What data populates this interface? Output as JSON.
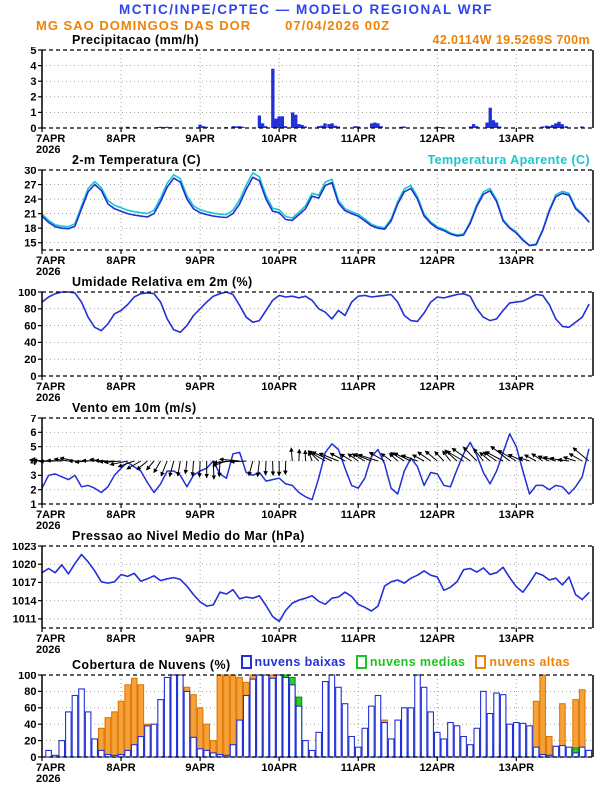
{
  "header": {
    "title": "MCTIC/INPE/CPTEC — MODELO REGIONAL WRF",
    "title_color": "#2e44ee",
    "station": "MG SAO DOMINGOS DAS DOR",
    "run": "07/04/2026 00Z",
    "coords": "42.0114W 19.5269S 700m",
    "accent_color": "#ef8200"
  },
  "axis": {
    "x_ticks": [
      "7APR",
      "8APR",
      "9APR",
      "10APR",
      "11APR",
      "12APR",
      "13APR"
    ],
    "year": "2026",
    "days_shown": 6.97,
    "grid": "dotted"
  },
  "panels": {
    "precip": {
      "title": "Precipitacao (mm/h)"
    },
    "temp": {
      "title": "2-m Temperatura (C)",
      "legend": "Temperatura Aparente (C)"
    },
    "humidity": {
      "title": "Umidade Relativa em 2m (%)"
    },
    "wind": {
      "title": "Vento em 10m (m/s)"
    },
    "pressure": {
      "title": "Pressao ao Nivel Medio do Mar (hPa)"
    },
    "clouds": {
      "title": "Cobertura de Nuvens (%)",
      "legend": [
        {
          "label": "nuvens baixas",
          "color": "#2130d8"
        },
        {
          "label": "nuvens medias",
          "color": "#1fc41f"
        },
        {
          "label": "nuvens altas",
          "color": "#ef8200"
        }
      ]
    }
  },
  "chart_data": [
    {
      "id": "precip",
      "type": "bar",
      "title": "Precipitacao (mm/h)",
      "ylim": [
        0,
        5
      ],
      "yticks": [
        0,
        1,
        2,
        3,
        4,
        5
      ],
      "x_origin": "07APR2026 00Z",
      "x_unit": "days",
      "bar_width_days": 0.042,
      "color": "#2130d8",
      "bars": [
        [
          1.08,
          0.08
        ],
        [
          1.17,
          0.06
        ],
        [
          1.46,
          0.06
        ],
        [
          1.5,
          0.08
        ],
        [
          1.54,
          0.06
        ],
        [
          1.58,
          0.08
        ],
        [
          1.63,
          0.06
        ],
        [
          2.0,
          0.22
        ],
        [
          2.04,
          0.12
        ],
        [
          2.08,
          0.08
        ],
        [
          2.33,
          0.06
        ],
        [
          2.42,
          0.12
        ],
        [
          2.46,
          0.1
        ],
        [
          2.5,
          0.12
        ],
        [
          2.54,
          0.08
        ],
        [
          2.75,
          0.8
        ],
        [
          2.79,
          0.3
        ],
        [
          2.83,
          0.12
        ],
        [
          2.92,
          3.8
        ],
        [
          2.96,
          0.6
        ],
        [
          3.0,
          0.75
        ],
        [
          3.04,
          0.75
        ],
        [
          3.08,
          0.12
        ],
        [
          3.17,
          1.0
        ],
        [
          3.21,
          0.85
        ],
        [
          3.25,
          0.25
        ],
        [
          3.29,
          0.2
        ],
        [
          3.33,
          0.1
        ],
        [
          3.5,
          0.12
        ],
        [
          3.54,
          0.15
        ],
        [
          3.58,
          0.3
        ],
        [
          3.63,
          0.25
        ],
        [
          3.67,
          0.3
        ],
        [
          3.71,
          0.15
        ],
        [
          3.75,
          0.1
        ],
        [
          3.96,
          0.12
        ],
        [
          4.0,
          0.1
        ],
        [
          4.17,
          0.3
        ],
        [
          4.21,
          0.35
        ],
        [
          4.25,
          0.3
        ],
        [
          4.29,
          0.12
        ],
        [
          4.54,
          0.08
        ],
        [
          4.58,
          0.1
        ],
        [
          5.0,
          0.08
        ],
        [
          5.04,
          0.06
        ],
        [
          5.42,
          0.1
        ],
        [
          5.46,
          0.25
        ],
        [
          5.5,
          0.12
        ],
        [
          5.63,
          0.35
        ],
        [
          5.67,
          1.3
        ],
        [
          5.71,
          0.5
        ],
        [
          5.75,
          0.35
        ],
        [
          5.79,
          0.1
        ],
        [
          6.33,
          0.1
        ],
        [
          6.38,
          0.15
        ],
        [
          6.42,
          0.12
        ],
        [
          6.46,
          0.2
        ],
        [
          6.5,
          0.3
        ],
        [
          6.54,
          0.4
        ],
        [
          6.58,
          0.25
        ],
        [
          6.63,
          0.12
        ],
        [
          6.83,
          0.1
        ]
      ]
    },
    {
      "id": "temp",
      "type": "line",
      "title": "2-m Temperatura (C)",
      "ylim": [
        13.5,
        30
      ],
      "yticks": [
        15,
        18,
        21,
        24,
        27,
        30
      ],
      "dx_days": 0.083333,
      "series": [
        {
          "name": "Temperatura Aparente (C)",
          "color": "#17c8cf",
          "values": [
            20.9,
            19.6,
            18.7,
            18.4,
            18.3,
            18.9,
            22.6,
            26.2,
            27.6,
            26.4,
            23.7,
            22.7,
            22.2,
            21.7,
            21.4,
            21.2,
            21,
            21.7,
            24.2,
            27.3,
            29,
            28.2,
            24.7,
            22.6,
            21.8,
            21.4,
            21.1,
            20.9,
            20.8,
            21.7,
            23.8,
            26.9,
            29.4,
            28.6,
            24.7,
            22.1,
            21.8,
            20.4,
            20.1,
            21.3,
            22.6,
            25.2,
            24.8,
            27.5,
            28.1,
            23.7,
            22,
            21.4,
            20.9,
            19.9,
            18.8,
            18.3,
            18.1,
            19.9,
            23.5,
            26.1,
            26.8,
            24.5,
            20.9,
            19.3,
            18.3,
            17.8,
            17,
            16.6,
            16.8,
            19.3,
            22.9,
            25.5,
            26.2,
            23.9,
            19.8,
            18.2,
            17.2,
            15.7,
            14.5,
            14.7,
            17.7,
            21.8,
            24.9,
            25.6,
            25.2,
            22.3,
            21,
            19.4
          ]
        },
        {
          "name": "2-m Temperatura (C)",
          "color": "#2130d8",
          "values": [
            20.5,
            19.2,
            18.3,
            18,
            17.9,
            18.4,
            22,
            25.5,
            27,
            25.8,
            23,
            22,
            21.5,
            21,
            20.7,
            20.5,
            20.3,
            21,
            23.5,
            26.5,
            28.3,
            27.5,
            24,
            22,
            21.2,
            20.8,
            20.5,
            20.3,
            20.2,
            21,
            23,
            26,
            28.5,
            27.8,
            24,
            21.5,
            21.2,
            19.8,
            19.6,
            20.8,
            22,
            24.6,
            24.2,
            26.8,
            27.4,
            23.2,
            21.6,
            21,
            20.5,
            19.5,
            18.5,
            18,
            17.8,
            19.5,
            23,
            25.5,
            26.2,
            24,
            20.5,
            19,
            18,
            17.5,
            16.8,
            16.4,
            16.6,
            19,
            22.5,
            25,
            25.7,
            23.5,
            19.5,
            18,
            17,
            15.5,
            14.4,
            14.6,
            17.5,
            21.5,
            24.5,
            25.2,
            24.8,
            22,
            20.8,
            19.3
          ]
        }
      ]
    },
    {
      "id": "humidity",
      "type": "line",
      "title": "Umidade Relativa em 2m (%)",
      "ylim": [
        0,
        100
      ],
      "yticks": [
        0,
        20,
        40,
        60,
        80,
        100
      ],
      "dx_days": 0.083333,
      "series": [
        {
          "name": "Umidade Relativa em 2m",
          "color": "#2130d8",
          "values": [
            88,
            94,
            98,
            100,
            100,
            99,
            88,
            70,
            58,
            54,
            62,
            74,
            78,
            85,
            94,
            98,
            99,
            98,
            88,
            68,
            55,
            52,
            60,
            72,
            80,
            88,
            95,
            98,
            100,
            97,
            84,
            70,
            64,
            66,
            78,
            90,
            96,
            94,
            95,
            93,
            95,
            90,
            80,
            76,
            68,
            78,
            72,
            88,
            95,
            96,
            94,
            95,
            96,
            97,
            88,
            72,
            66,
            65,
            75,
            88,
            94,
            93,
            95,
            97,
            98,
            95,
            80,
            70,
            66,
            68,
            78,
            87,
            88,
            89,
            93,
            97,
            96,
            85,
            68,
            59,
            58,
            64,
            70,
            85
          ]
        }
      ]
    },
    {
      "id": "wind",
      "type": "line_vectors",
      "title": "Vento em 10m (m/s)",
      "ylim": [
        1,
        7
      ],
      "yticks": [
        1,
        2,
        3,
        4,
        5,
        6,
        7
      ],
      "dx_days": 0.083333,
      "speed": {
        "name": "Velocidade do vento",
        "color": "#2130d8",
        "values": [
          2.1,
          3,
          3.1,
          2.9,
          2.7,
          3,
          2.2,
          2.3,
          2.1,
          1.8,
          2.2,
          3,
          3.5,
          3.9,
          3.6,
          3.3,
          2.5,
          1.8,
          2.4,
          3.3,
          3.3,
          3,
          2.2,
          3,
          3.3,
          3.5,
          4,
          3.1,
          2.8,
          4.5,
          4.6,
          3.2,
          3,
          3.2,
          2.6,
          2.7,
          2.8,
          2.4,
          2.3,
          1.8,
          1.5,
          1.3,
          2.8,
          4.6,
          5.2,
          4.8,
          3.5,
          2.3,
          2.1,
          2.8,
          4.3,
          4.8,
          3.8,
          2.1,
          1.7,
          3.3,
          4.2,
          3.6,
          2.3,
          3.2,
          3.1,
          2.3,
          2.2,
          3.4,
          4.5,
          5.3,
          4.4,
          3.2,
          2.4,
          3.3,
          4.6,
          5.9,
          5,
          3.3,
          1.7,
          2.3,
          2.3,
          2,
          2.3,
          2.2,
          1.7,
          2.2,
          2.9,
          4.8
        ]
      },
      "vectors": {
        "name": "Direcao do vento",
        "color": "#000000",
        "anchor_y": 4,
        "angles_deg_screen": [
          175,
          178,
          182,
          178,
          172,
          168,
          180,
          185,
          178,
          172,
          178,
          183,
          185,
          192,
          200,
          210,
          220,
          230,
          240,
          248,
          255,
          260,
          263,
          266,
          268,
          270,
          272,
          268,
          200,
          185,
          175,
          183,
          255,
          263,
          268,
          272,
          270,
          268,
          95,
          88,
          92,
          110,
          135,
          150,
          155,
          158,
          152,
          148,
          145,
          150,
          158,
          162,
          150,
          143,
          138,
          148,
          155,
          160,
          152,
          145,
          140,
          134,
          128,
          138,
          150,
          145,
          134,
          128,
          140,
          146,
          152,
          142,
          150,
          156,
          162,
          152,
          146,
          156,
          162,
          166,
          172,
          162,
          150,
          140
        ]
      }
    },
    {
      "id": "pressure",
      "type": "line",
      "title": "Pressao ao Nivel Medio do Mar (hPa)",
      "ylim": [
        1009.5,
        1023
      ],
      "yticks": [
        1011,
        1014,
        1017,
        1020,
        1023
      ],
      "dx_days": 0.083333,
      "series": [
        {
          "name": "Pressao ao nivel medio do mar",
          "color": "#2130d8",
          "values": [
            1018.6,
            1019.3,
            1018.6,
            1019.9,
            1018.4,
            1020.1,
            1021.6,
            1020.4,
            1018.9,
            1017.1,
            1016.9,
            1017.1,
            1018.3,
            1018,
            1018.5,
            1017.2,
            1017.6,
            1018.1,
            1017.3,
            1017.6,
            1017.8,
            1017.5,
            1016.4,
            1015,
            1013.8,
            1013.1,
            1013.3,
            1015.4,
            1015.1,
            1015.8,
            1014.3,
            1014.6,
            1014.4,
            1014.8,
            1013.2,
            1011.4,
            1010.6,
            1012.4,
            1013.6,
            1014.1,
            1014.4,
            1014.8,
            1013.9,
            1013.4,
            1014.4,
            1014.6,
            1015.4,
            1014.7,
            1013.4,
            1012.9,
            1012.3,
            1013.1,
            1016.4,
            1017.1,
            1017.4,
            1016.9,
            1017.7,
            1018.2,
            1018.9,
            1018.2,
            1017.9,
            1015.7,
            1016.2,
            1017.1,
            1019.1,
            1019.3,
            1018.7,
            1019.4,
            1018.3,
            1018.6,
            1019.5,
            1017.8,
            1016.3,
            1015.4,
            1016.9,
            1018.6,
            1018.2,
            1017.4,
            1017.7,
            1016.6,
            1017.9,
            1015,
            1014.2,
            1015.3
          ]
        }
      ]
    },
    {
      "id": "clouds",
      "type": "bar_multi",
      "title": "Cobertura de Nuvens (%)",
      "ylim": [
        0,
        100
      ],
      "yticks": [
        0,
        20,
        40,
        60,
        80,
        100
      ],
      "dx_days": 0.083333,
      "bar_width_days": 0.07,
      "series": [
        {
          "name": "nuvens altas",
          "stroke": "#e07800",
          "fill": "#f6a23c",
          "values": [
            0,
            0,
            0,
            0,
            0,
            0,
            0,
            0,
            20,
            35,
            48,
            55,
            68,
            88,
            96,
            88,
            40,
            20,
            8,
            80,
            65,
            45,
            85,
            76,
            60,
            40,
            20,
            100,
            100,
            100,
            97,
            91,
            100,
            100,
            95,
            100,
            100,
            75,
            10,
            5,
            2,
            0,
            0,
            0,
            3,
            2,
            2,
            5,
            3,
            2,
            2,
            2,
            45,
            18,
            5,
            3,
            2,
            2,
            2,
            3,
            2,
            2,
            3,
            2,
            2,
            2,
            3,
            4,
            3,
            2,
            2,
            2,
            3,
            2,
            2,
            68,
            100,
            25,
            13,
            65,
            5,
            70,
            82,
            8
          ]
        },
        {
          "name": "nuvens medias",
          "stroke": "#009900",
          "fill": "#2ecc2e",
          "values": [
            0,
            0,
            0,
            0,
            0,
            0,
            0,
            0,
            0,
            0,
            0,
            0,
            0,
            0,
            0,
            0,
            0,
            0,
            0,
            0,
            0,
            0,
            0,
            0,
            0,
            0,
            0,
            0,
            0,
            0,
            0,
            5,
            10,
            20,
            27,
            60,
            100,
            100,
            97,
            73,
            10,
            5,
            8,
            10,
            7,
            8,
            6,
            5,
            5,
            8,
            6,
            3,
            2,
            2,
            3,
            5,
            8,
            6,
            4,
            3,
            2,
            3,
            2,
            2,
            3,
            3,
            5,
            10,
            18,
            15,
            8,
            4,
            5,
            4,
            3,
            2,
            2,
            2,
            3,
            13,
            10,
            11,
            4,
            2
          ]
        },
        {
          "name": "nuvens baixas",
          "stroke": "#2130d8",
          "fill": "#ffffff",
          "values": [
            0,
            8,
            2,
            20,
            55,
            75,
            83,
            55,
            22,
            8,
            3,
            2,
            3,
            8,
            15,
            25,
            38,
            40,
            70,
            97,
            100,
            100,
            80,
            24,
            10,
            8,
            5,
            3,
            2,
            15,
            45,
            75,
            95,
            100,
            100,
            96,
            100,
            97,
            88,
            62,
            20,
            8,
            30,
            92,
            100,
            85,
            65,
            25,
            12,
            35,
            62,
            75,
            42,
            22,
            45,
            60,
            60,
            100,
            85,
            55,
            30,
            22,
            42,
            38,
            25,
            15,
            35,
            80,
            53,
            78,
            76,
            40,
            42,
            41,
            38,
            12,
            3,
            2,
            13,
            14,
            12,
            5,
            12,
            8
          ]
        }
      ]
    }
  ]
}
